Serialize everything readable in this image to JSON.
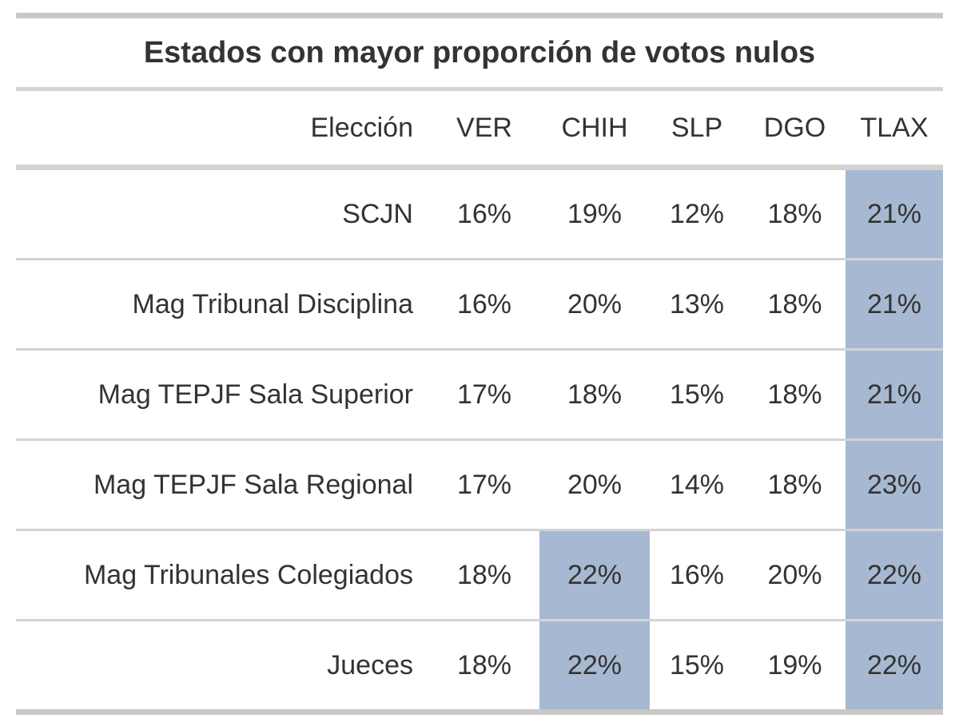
{
  "chart_data": {
    "type": "table",
    "title": "Estados con mayor proporción de votos nulos",
    "row_header": "Elección",
    "columns": [
      "VER",
      "CHIH",
      "SLP",
      "DGO",
      "TLAX"
    ],
    "rows": [
      {
        "label": "SCJN",
        "values": [
          "16%",
          "19%",
          "12%",
          "18%",
          "21%"
        ],
        "highlight": [
          false,
          false,
          false,
          false,
          true
        ]
      },
      {
        "label": "Mag Tribunal Disciplina",
        "values": [
          "16%",
          "20%",
          "13%",
          "18%",
          "21%"
        ],
        "highlight": [
          false,
          false,
          false,
          false,
          true
        ]
      },
      {
        "label": "Mag TEPJF Sala Superior",
        "values": [
          "17%",
          "18%",
          "15%",
          "18%",
          "21%"
        ],
        "highlight": [
          false,
          false,
          false,
          false,
          true
        ]
      },
      {
        "label": "Mag TEPJF Sala Regional",
        "values": [
          "17%",
          "20%",
          "14%",
          "18%",
          "23%"
        ],
        "highlight": [
          false,
          false,
          false,
          false,
          true
        ]
      },
      {
        "label": "Mag Tribunales Colegiados",
        "values": [
          "18%",
          "22%",
          "16%",
          "20%",
          "22%"
        ],
        "highlight": [
          false,
          true,
          false,
          false,
          true
        ]
      },
      {
        "label": "Jueces",
        "values": [
          "18%",
          "22%",
          "15%",
          "19%",
          "22%"
        ],
        "highlight": [
          false,
          true,
          false,
          false,
          true
        ]
      }
    ],
    "highlight_color": "#a7b9d2"
  }
}
